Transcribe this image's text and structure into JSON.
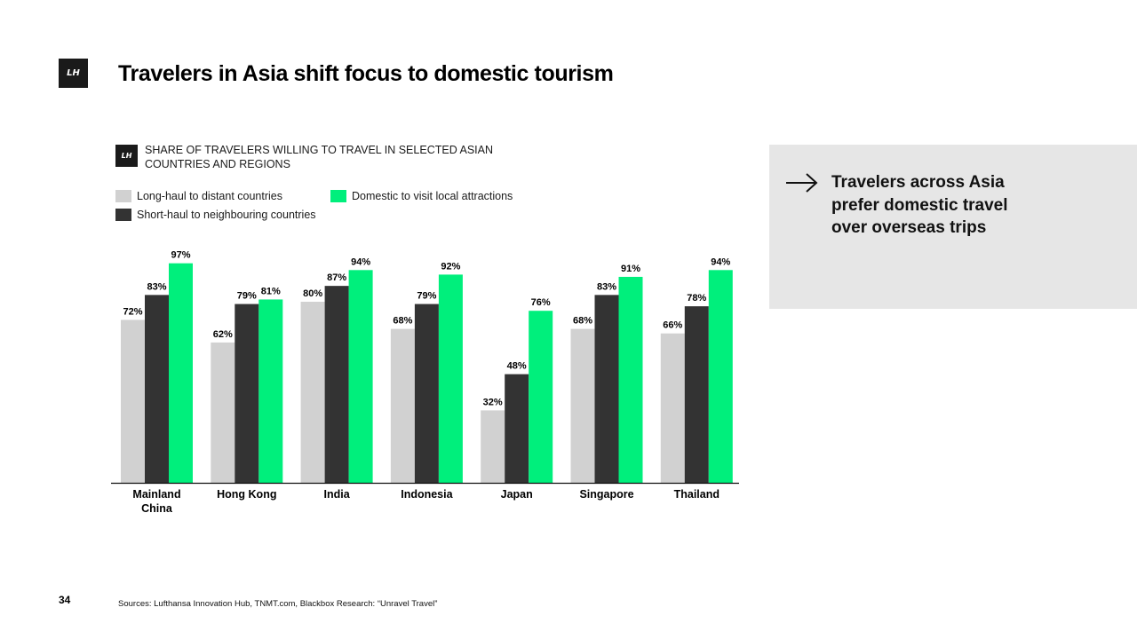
{
  "header": {
    "logo_text": "LH",
    "title": "Travelers in Asia shift focus to domestic tourism"
  },
  "chart_section": {
    "logo_text": "LH",
    "title": "SHARE OF TRAVELERS WILLING TO TRAVEL IN SELECTED ASIAN COUNTRIES AND REGIONS"
  },
  "chart_data": {
    "type": "bar",
    "title": "SHARE OF TRAVELERS WILLING TO TRAVEL IN SELECTED ASIAN COUNTRIES AND REGIONS",
    "categories": [
      [
        "Mainland",
        "China"
      ],
      [
        "Hong Kong"
      ],
      [
        "India"
      ],
      [
        "Indonesia"
      ],
      [
        "Japan"
      ],
      [
        "Singapore"
      ],
      [
        "Thailand"
      ]
    ],
    "series": [
      {
        "name": "Long-haul to distant countries",
        "color": "#d1d1d1",
        "values": [
          72,
          62,
          80,
          68,
          32,
          68,
          66
        ],
        "labels": [
          "72%",
          "62%",
          "80%",
          "68%",
          "32%",
          "68%",
          "66%"
        ]
      },
      {
        "name": "Short-haul to neighbouring countries",
        "color": "#333333",
        "values": [
          83,
          79,
          87,
          79,
          48,
          83,
          78
        ],
        "labels": [
          "83%",
          "79%",
          "87%",
          "79%",
          "48%",
          "83%",
          "78%"
        ]
      },
      {
        "name": "Domestic to visit local attractions",
        "color": "#00ef7c",
        "values": [
          97,
          81,
          94,
          92,
          76,
          91,
          94
        ],
        "labels": [
          "97%",
          "81%",
          "94%",
          "92%",
          "76%",
          "91%",
          "94%"
        ]
      }
    ],
    "ylim": [
      0,
      100
    ],
    "grid": false,
    "legend_position": "top-left",
    "xlabel": "",
    "ylabel": ""
  },
  "legend": {
    "long_haul": "Long-haul to distant countries",
    "short_haul": "Short-haul to neighbouring countries",
    "domestic": "Domestic to visit local attractions"
  },
  "side_panel": {
    "icon": "arrow-right-icon",
    "text": "Travelers across Asia prefer domestic travel over overseas trips"
  },
  "footer": {
    "page_number": "34",
    "sources": "Sources: Lufthansa Innovation Hub, TNMT.com, Blackbox Research: “Unravel Travel”"
  }
}
